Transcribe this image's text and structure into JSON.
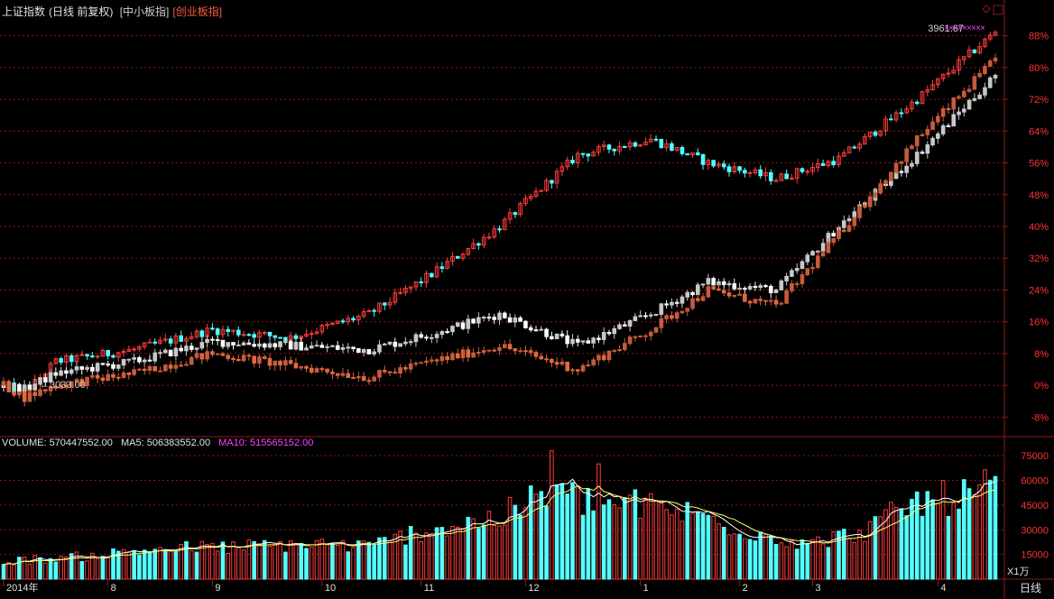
{
  "header": {
    "index_name": "上证指数",
    "period_label": "(日线 前复权)",
    "compare_1": "[中小板指]",
    "compare_2": "[创业板指]"
  },
  "colors": {
    "background": "#000000",
    "up": "#ff3c3c",
    "down": "#54ffff",
    "grid": "#8b1a1a",
    "axis_text": "#ff3232",
    "series_gray": "#c8c8c8",
    "series_dark": "#c85a3c",
    "ma5": "#ffffff",
    "ma10": "#ffff66",
    "ma10_label": "#ff40ff"
  },
  "volume_legend": {
    "volume": "VOLUME: 570447552.00",
    "ma5": "MA5: 506383552.00",
    "ma10": "MA10: 515565152.00"
  },
  "annotations": {
    "start_value": "3033.00",
    "end_value": "3961.67"
  },
  "period_button": "日线",
  "volume_unit": "X1万",
  "chart_data": [
    {
      "type": "candlestick-compare",
      "y_axis_ticks": [
        "88%",
        "80%",
        "72%",
        "64%",
        "56%",
        "48%",
        "40%",
        "32%",
        "24%",
        "16%",
        "8%",
        "0%",
        "-8%"
      ],
      "ylim_percent": [
        -12,
        92
      ],
      "x_ticks": [
        "2014年",
        "8",
        "9",
        "10",
        "11",
        "12",
        "1",
        "2",
        "3",
        "4"
      ],
      "series": [
        {
          "name": "上证指数",
          "checkpoints": [
            [
              0,
              0
            ],
            [
              4,
              -2
            ],
            [
              10,
              6
            ],
            [
              25,
              9
            ],
            [
              40,
              14
            ],
            [
              55,
              12
            ],
            [
              70,
              18
            ],
            [
              82,
              28
            ],
            [
              95,
              40
            ],
            [
              110,
              58
            ],
            [
              124,
              62
            ],
            [
              135,
              56
            ],
            [
              148,
              52
            ],
            [
              160,
              57
            ],
            [
              175,
              72
            ],
            [
              190,
              89
            ]
          ]
        },
        {
          "name": "中小板指",
          "checkpoints": [
            [
              0,
              0
            ],
            [
              4,
              -1
            ],
            [
              10,
              3
            ],
            [
              25,
              6
            ],
            [
              40,
              11
            ],
            [
              55,
              10
            ],
            [
              70,
              9
            ],
            [
              82,
              13
            ],
            [
              95,
              18
            ],
            [
              110,
              10
            ],
            [
              124,
              18
            ],
            [
              135,
              26
            ],
            [
              148,
              24
            ],
            [
              160,
              40
            ],
            [
              175,
              58
            ],
            [
              190,
              78
            ]
          ]
        },
        {
          "name": "创业板指",
          "checkpoints": [
            [
              0,
              0
            ],
            [
              4,
              -3
            ],
            [
              10,
              0
            ],
            [
              25,
              3
            ],
            [
              40,
              8
            ],
            [
              55,
              5
            ],
            [
              70,
              2
            ],
            [
              82,
              6
            ],
            [
              95,
              10
            ],
            [
              110,
              4
            ],
            [
              124,
              14
            ],
            [
              135,
              24
            ],
            [
              148,
              20
            ],
            [
              160,
              38
            ],
            [
              175,
              62
            ],
            [
              190,
              82
            ]
          ]
        }
      ]
    },
    {
      "type": "bar",
      "y_axis_ticks": [
        "75000",
        "60000",
        "45000",
        "30000",
        "15000"
      ],
      "ylim": [
        0,
        80000
      ],
      "volume_checkpoints": [
        [
          0,
          11000
        ],
        [
          15,
          14000
        ],
        [
          30,
          19000
        ],
        [
          45,
          20000
        ],
        [
          60,
          22000
        ],
        [
          70,
          20000
        ],
        [
          80,
          30000
        ],
        [
          95,
          38000
        ],
        [
          105,
          55000
        ],
        [
          112,
          48000
        ],
        [
          125,
          45000
        ],
        [
          135,
          38000
        ],
        [
          145,
          28000
        ],
        [
          155,
          22000
        ],
        [
          165,
          30000
        ],
        [
          175,
          48000
        ],
        [
          185,
          52000
        ],
        [
          190,
          60000
        ]
      ],
      "spikes": [
        [
          105,
          78000
        ],
        [
          114,
          70000
        ]
      ]
    }
  ]
}
